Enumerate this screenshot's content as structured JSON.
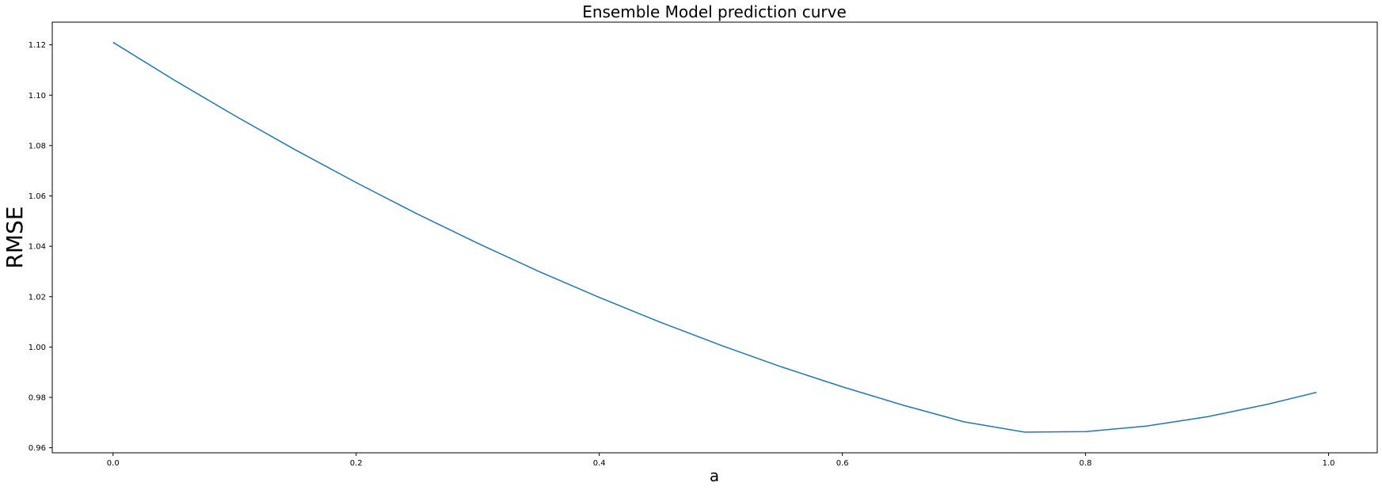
{
  "chart_data": {
    "type": "line",
    "title": "Ensemble Model prediction curve",
    "xlabel": "a",
    "ylabel": "RMSE",
    "xlim": [
      -0.05,
      1.04
    ],
    "ylim": [
      0.958,
      1.129
    ],
    "xticks": [
      0.0,
      0.2,
      0.4,
      0.6,
      0.8,
      1.0
    ],
    "xtick_labels": [
      "0.0",
      "0.2",
      "0.4",
      "0.6",
      "0.8",
      "1.0"
    ],
    "yticks": [
      0.96,
      0.98,
      1.0,
      1.02,
      1.04,
      1.06,
      1.08,
      1.1,
      1.12
    ],
    "ytick_labels": [
      "0.96",
      "0.98",
      "1.00",
      "1.02",
      "1.04",
      "1.06",
      "1.08",
      "1.10",
      "1.12"
    ],
    "grid": false,
    "legend": "none",
    "series": [
      {
        "color": "#1f77b4",
        "x": [
          0.0,
          0.05,
          0.1,
          0.15,
          0.2,
          0.25,
          0.3,
          0.35,
          0.4,
          0.45,
          0.5,
          0.55,
          0.6,
          0.65,
          0.7,
          0.75,
          0.8,
          0.85,
          0.9,
          0.95,
          0.99
        ],
        "y": [
          1.121,
          1.1061,
          1.0919,
          1.0783,
          1.0653,
          1.0529,
          1.0412,
          1.0301,
          1.0197,
          1.0099,
          1.0007,
          0.9921,
          0.9842,
          0.9769,
          0.9703,
          0.9662,
          0.9664,
          0.9686,
          0.9723,
          0.9773,
          0.982
        ]
      }
    ]
  }
}
